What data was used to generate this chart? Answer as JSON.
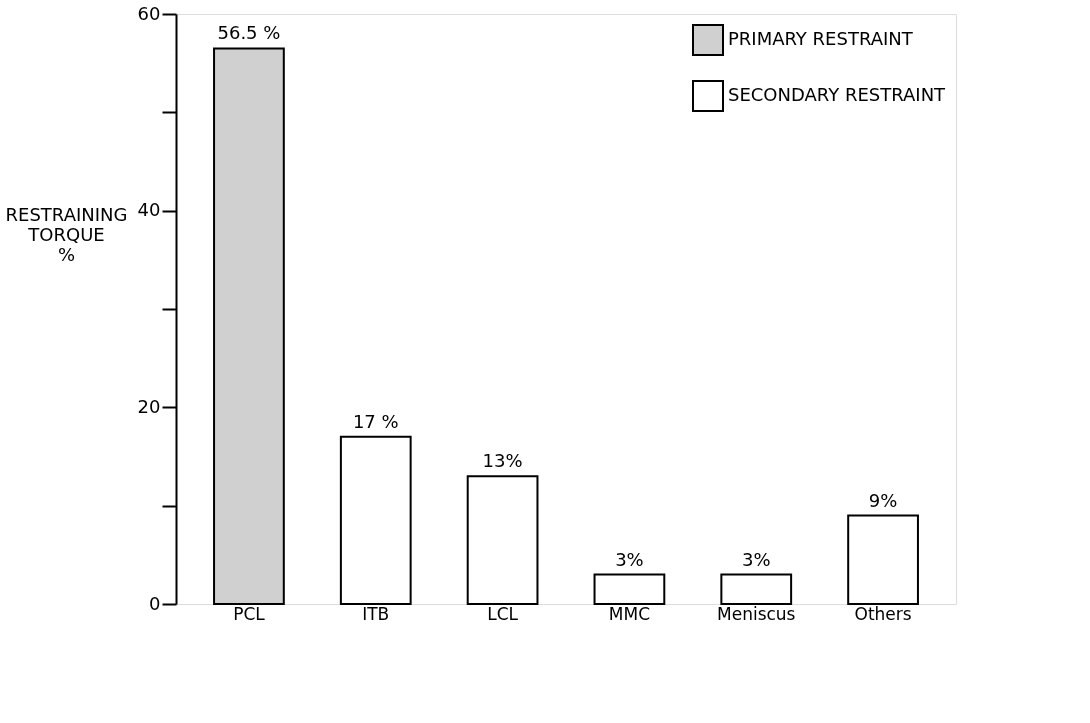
{
  "chart_data": {
    "type": "bar",
    "ylabel": "RESTRAINING\nTORQUE\n%",
    "categories": [
      "PCL",
      "ITB",
      "LCL",
      "MMC",
      "Meniscus",
      "Others"
    ],
    "series": [
      {
        "name": "PRIMARY RESTRAINT",
        "color": "#d0d0d0",
        "values": [
          56.5,
          null,
          null,
          null,
          null,
          null
        ]
      },
      {
        "name": "SECONDARY RESTRAINT",
        "color": "#ffffff",
        "values": [
          null,
          17,
          13,
          3,
          3,
          9
        ]
      }
    ],
    "value_labels": [
      "56.5 %",
      "17 %",
      "13%",
      "3%",
      "3%",
      "9%"
    ],
    "ylim": [
      0,
      60
    ],
    "yticks": [
      0,
      {
        "value": 10,
        "label": null
      },
      20,
      {
        "value": 30,
        "label": null
      },
      40,
      {
        "value": 50,
        "label": null
      },
      60
    ],
    "grid": false,
    "legend": "top right"
  }
}
